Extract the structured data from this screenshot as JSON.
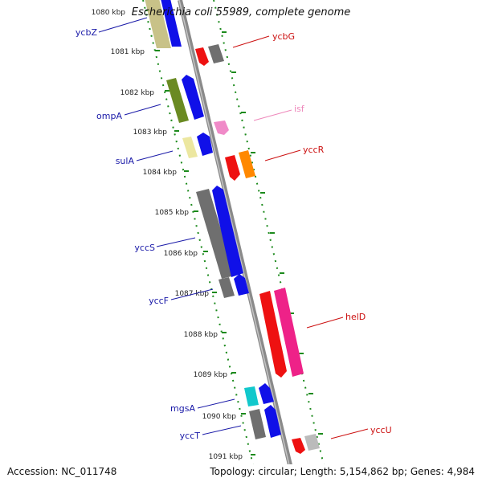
{
  "title": "Escherichia coli 55989, complete genome",
  "accession": "Accession: NC_011748",
  "topology": "Topology: circular; Length: 5,154,862 bp; Genes: 4,984",
  "colors": {
    "backbone": "#888888",
    "tick": "#1c8a1c",
    "left_label": "#1a1aa8",
    "right_label": "#cc1111",
    "right_label_light": "#ee88bb"
  },
  "ruler": [
    {
      "label": "1080 kbp",
      "kbp": 1080
    },
    {
      "label": "1081 kbp",
      "kbp": 1081
    },
    {
      "label": "1082 kbp",
      "kbp": 1082
    },
    {
      "label": "1083 kbp",
      "kbp": 1083
    },
    {
      "label": "1084 kbp",
      "kbp": 1084
    },
    {
      "label": "1085 kbp",
      "kbp": 1085
    },
    {
      "label": "1086 kbp",
      "kbp": 1086
    },
    {
      "label": "1087 kbp",
      "kbp": 1087
    },
    {
      "label": "1088 kbp",
      "kbp": 1088
    },
    {
      "label": "1089 kbp",
      "kbp": 1089
    },
    {
      "label": "1090 kbp",
      "kbp": 1090
    },
    {
      "label": "1091 kbp",
      "kbp": 1091
    }
  ],
  "left_labels": [
    {
      "name": "ycbZ"
    },
    {
      "name": "ompA"
    },
    {
      "name": "sulA"
    },
    {
      "name": "yccS"
    },
    {
      "name": "yccF"
    },
    {
      "name": "mgsA"
    },
    {
      "name": "yccT"
    }
  ],
  "right_labels": [
    {
      "name": "ycbG",
      "color": "#cc1111"
    },
    {
      "name": "isf",
      "color": "#ee88bb"
    },
    {
      "name": "yccR",
      "color": "#cc1111"
    },
    {
      "name": "helD",
      "color": "#cc1111"
    },
    {
      "name": "yccU",
      "color": "#cc1111"
    }
  ]
}
